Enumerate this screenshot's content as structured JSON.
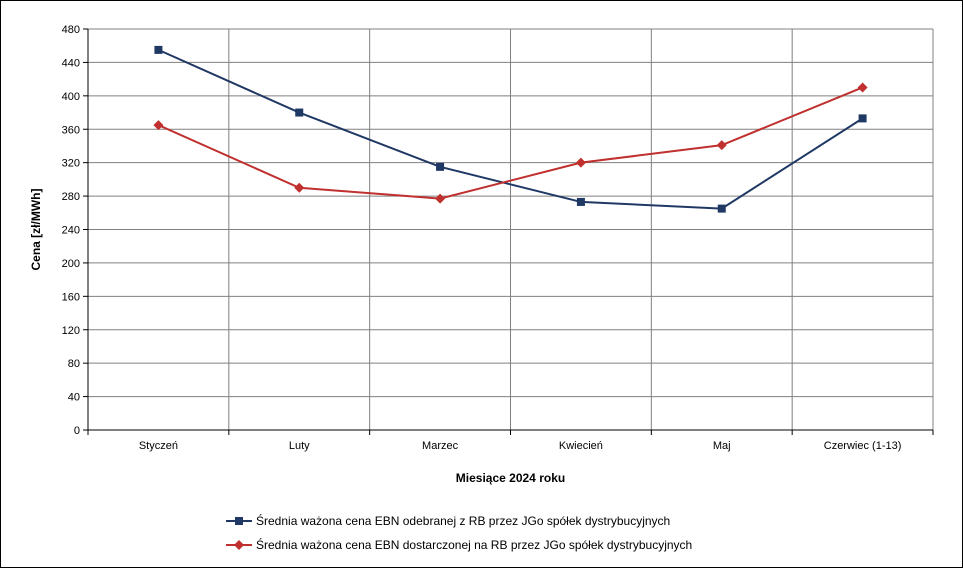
{
  "chart_data": {
    "type": "line",
    "title": "",
    "xlabel": "Miesiące 2024  roku",
    "ylabel": "Cena [zł/MWh]",
    "ylim": [
      0,
      480
    ],
    "yticks": [
      0,
      40,
      80,
      120,
      160,
      200,
      240,
      280,
      320,
      360,
      400,
      440,
      480
    ],
    "grid": true,
    "legend_position": "bottom",
    "categories": [
      "Styczeń",
      "Luty",
      "Marzec",
      "Kwiecień",
      "Maj",
      "Czerwiec (1-13)"
    ],
    "series": [
      {
        "name": "Średnia ważona cena EBN odebranej z RB przez JGo spółek dystrybucyjnych",
        "color": "#1f3864",
        "marker": "square",
        "values": [
          455,
          380,
          315,
          273,
          265,
          373
        ]
      },
      {
        "name": "Średnia ważona cena EBN dostarczonej na RB przez JGo spółek dystrybucyjnych",
        "color": "#c0302e",
        "marker": "diamond",
        "values": [
          365,
          290,
          277,
          320,
          341,
          410
        ]
      }
    ]
  }
}
